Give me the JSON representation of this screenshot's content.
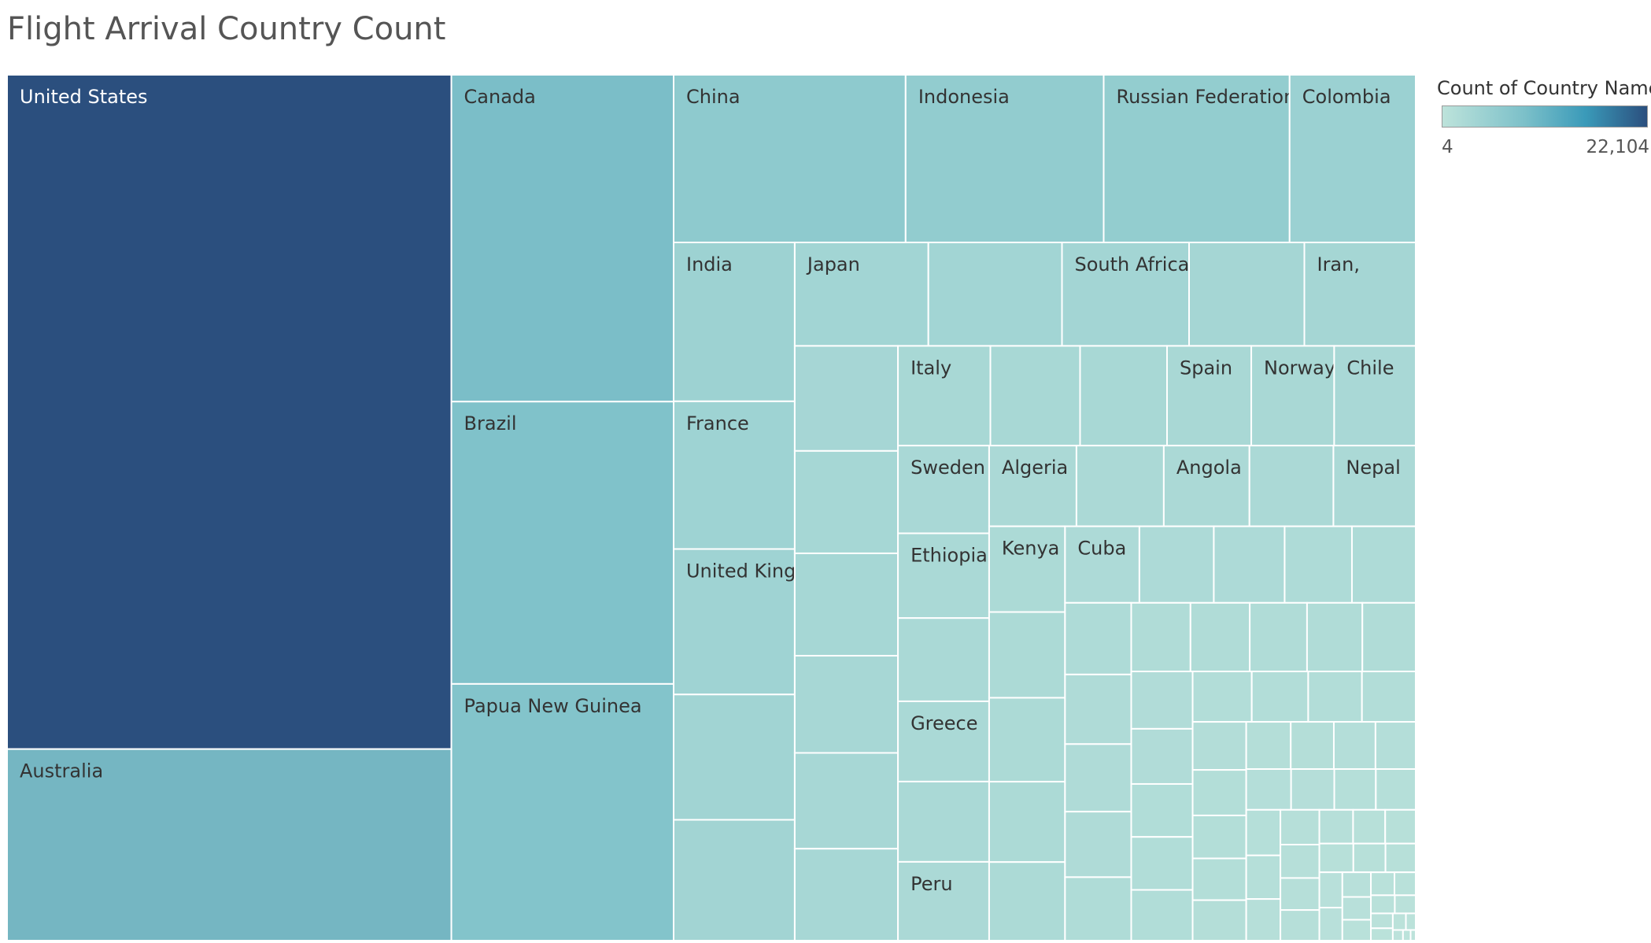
{
  "title": "Flight Arrival Country Count",
  "legend": {
    "title": "Count of Country Name",
    "min_label": "4",
    "max_label": "22,104",
    "color_low": "#bde3db",
    "color_high": "#2b4f7e"
  },
  "chart_data": {
    "type": "treemap",
    "title": "Flight Arrival Country Count",
    "measure": "Count of Country Name",
    "color_range": [
      4,
      22104
    ],
    "labeled_countries": [
      {
        "name": "United States",
        "value": 22104
      },
      {
        "name": "Australia",
        "value": 6280
      },
      {
        "name": "Canada",
        "value": 5360
      },
      {
        "name": "Brazil",
        "value": 4630
      },
      {
        "name": "Papua New Guinea",
        "value": 4210
      },
      {
        "name": "China",
        "value": 2870
      },
      {
        "name": "Indonesia",
        "value": 2450
      },
      {
        "name": "Russian Federation",
        "value": 2300
      },
      {
        "name": "Colombia",
        "value": 1560
      },
      {
        "name": "India",
        "value": 1420
      },
      {
        "name": "France",
        "value": 1320
      },
      {
        "name": "United Kingdom",
        "value": 1300
      },
      {
        "name": "Japan",
        "value": 1020
      },
      {
        "name": "South Africa",
        "value": 970
      },
      {
        "name": "Iran,",
        "value": 850
      },
      {
        "name": "Italy",
        "value": 680
      },
      {
        "name": "Spain",
        "value": 620
      },
      {
        "name": "Norway",
        "value": 610
      },
      {
        "name": "Chile",
        "value": 600
      },
      {
        "name": "Sweden",
        "value": 590
      },
      {
        "name": "Ethiopia",
        "value": 570
      },
      {
        "name": "Greece",
        "value": 540
      },
      {
        "name": "Peru",
        "value": 530
      },
      {
        "name": "Algeria",
        "value": 520
      },
      {
        "name": "Angola",
        "value": 510
      },
      {
        "name": "Nepal",
        "value": 490
      },
      {
        "name": "Kenya",
        "value": 480
      },
      {
        "name": "Cuba",
        "value": 420
      }
    ],
    "unlabeled_country_values": [
      1120,
      1080,
      1020,
      880,
      800,
      780,
      780,
      740,
      730,
      700,
      660,
      640,
      560,
      540,
      520,
      500,
      480,
      470,
      450,
      440,
      420,
      400,
      380,
      360,
      350,
      340,
      330,
      320,
      310,
      300,
      300,
      290,
      280,
      270,
      260,
      250,
      240,
      240,
      230,
      220,
      210,
      200,
      200,
      190,
      180,
      170,
      165,
      160,
      155,
      150,
      145,
      140,
      135,
      130,
      125,
      120,
      115,
      110,
      105,
      100,
      96,
      92,
      88,
      84,
      80,
      76,
      72,
      68,
      64,
      60,
      56,
      52,
      48,
      44,
      40,
      36,
      32,
      28,
      24,
      20,
      16,
      12,
      8,
      6,
      4
    ]
  }
}
